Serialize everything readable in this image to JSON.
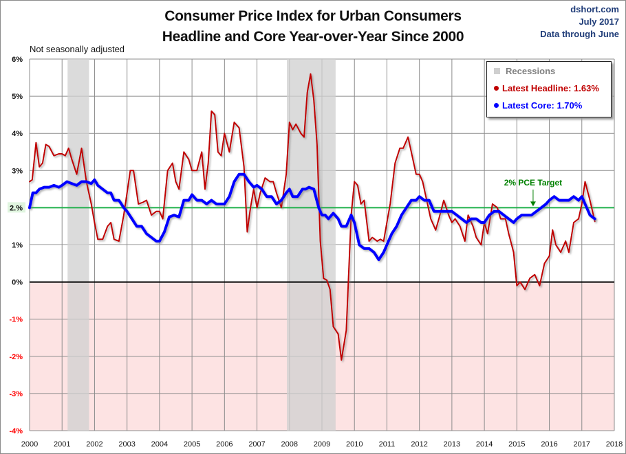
{
  "header": {
    "title_line1": "Consumer Price Index for Urban Consumers",
    "title_line2": "Headline and Core Year-over-Year Since 2000",
    "source": "dshort.com",
    "date": "July 2017",
    "data_through": "Data through June",
    "note": "Not seasonally adjusted"
  },
  "legend": {
    "recessions": "Recessions",
    "headline": "Latest Headline:  1.63%",
    "core": "Latest Core:  1.70%"
  },
  "colors": {
    "headline": "#c00000",
    "core": "#0000ff",
    "target": "#22b14c",
    "target_label": "#008000",
    "recession": "#d0d0d0",
    "negative_zone": "#fde3e3",
    "negative_tick": "#ff0000"
  },
  "chart_data": {
    "type": "line",
    "title": "Consumer Price Index for Urban Consumers — Headline and Core Year-over-Year Since 2000",
    "xlabel": "",
    "ylabel": "",
    "xlim": [
      2000,
      2018
    ],
    "ylim": [
      -4,
      6
    ],
    "grid": true,
    "legend_position": "top-right",
    "x_ticks": [
      "2000",
      "2001",
      "2002",
      "2003",
      "2004",
      "2005",
      "2006",
      "2007",
      "2008",
      "2009",
      "2010",
      "2011",
      "2012",
      "2013",
      "2014",
      "2015",
      "2016",
      "2017",
      "2018"
    ],
    "y_ticks": [
      {
        "value": 6,
        "label": "6%"
      },
      {
        "value": 5,
        "label": "5%"
      },
      {
        "value": 4,
        "label": "4%"
      },
      {
        "value": 3,
        "label": "3%"
      },
      {
        "value": 2,
        "label": "2.%"
      },
      {
        "value": 1,
        "label": "1%"
      },
      {
        "value": 0,
        "label": "0%"
      },
      {
        "value": -1,
        "label": "-1%"
      },
      {
        "value": -2,
        "label": "-2%"
      },
      {
        "value": -3,
        "label": "-3%"
      },
      {
        "value": -4,
        "label": "-4%"
      }
    ],
    "recessions": [
      [
        2001.17,
        2001.83
      ],
      [
        2007.92,
        2009.42
      ]
    ],
    "target": {
      "value": 2.0,
      "label": "2% PCE Target",
      "label_x": 2015.5
    },
    "series": [
      {
        "name": "Headline",
        "x": [
          2000.0,
          2000.08,
          2000.2,
          2000.3,
          2000.4,
          2000.5,
          2000.6,
          2000.75,
          2000.9,
          2001.0,
          2001.1,
          2001.2,
          2001.3,
          2001.45,
          2001.6,
          2001.75,
          2001.9,
          2002.0,
          2002.1,
          2002.25,
          2002.4,
          2002.5,
          2002.6,
          2002.75,
          2002.9,
          2003.0,
          2003.1,
          2003.2,
          2003.35,
          2003.5,
          2003.6,
          2003.75,
          2003.9,
          2004.0,
          2004.1,
          2004.25,
          2004.4,
          2004.5,
          2004.6,
          2004.75,
          2004.9,
          2005.0,
          2005.15,
          2005.3,
          2005.4,
          2005.5,
          2005.6,
          2005.7,
          2005.8,
          2005.9,
          2006.0,
          2006.15,
          2006.3,
          2006.45,
          2006.6,
          2006.7,
          2006.8,
          2006.9,
          2007.0,
          2007.1,
          2007.25,
          2007.4,
          2007.5,
          2007.6,
          2007.75,
          2007.9,
          2008.0,
          2008.1,
          2008.2,
          2008.35,
          2008.45,
          2008.55,
          2008.65,
          2008.75,
          2008.85,
          2008.95,
          2009.05,
          2009.15,
          2009.25,
          2009.35,
          2009.5,
          2009.6,
          2009.75,
          2009.9,
          2010.0,
          2010.1,
          2010.2,
          2010.3,
          2010.45,
          2010.55,
          2010.7,
          2010.8,
          2010.9,
          2011.0,
          2011.1,
          2011.25,
          2011.4,
          2011.5,
          2011.65,
          2011.75,
          2011.9,
          2012.0,
          2012.1,
          2012.2,
          2012.35,
          2012.5,
          2012.6,
          2012.75,
          2012.9,
          2013.0,
          2013.1,
          2013.25,
          2013.4,
          2013.5,
          2013.65,
          2013.75,
          2013.9,
          2014.0,
          2014.1,
          2014.25,
          2014.4,
          2014.5,
          2014.65,
          2014.75,
          2014.9,
          2015.0,
          2015.1,
          2015.25,
          2015.4,
          2015.55,
          2015.7,
          2015.85,
          2016.0,
          2016.1,
          2016.2,
          2016.35,
          2016.5,
          2016.6,
          2016.75,
          2016.9,
          2017.0,
          2017.1,
          2017.25,
          2017.4
        ],
        "values": [
          2.7,
          2.75,
          3.75,
          3.1,
          3.2,
          3.7,
          3.65,
          3.4,
          3.45,
          3.45,
          3.4,
          3.6,
          3.3,
          2.9,
          3.6,
          2.7,
          2.1,
          1.6,
          1.15,
          1.15,
          1.5,
          1.6,
          1.15,
          1.1,
          1.8,
          2.4,
          3.0,
          3.0,
          2.1,
          2.15,
          2.2,
          1.8,
          1.9,
          1.9,
          1.7,
          3.0,
          3.2,
          2.7,
          2.5,
          3.5,
          3.3,
          3.0,
          3.0,
          3.5,
          2.5,
          3.2,
          4.6,
          4.5,
          3.5,
          3.4,
          4.0,
          3.5,
          4.3,
          4.15,
          3.1,
          1.35,
          2.0,
          2.5,
          2.0,
          2.4,
          2.8,
          2.7,
          2.7,
          2.4,
          2.0,
          2.9,
          4.3,
          4.1,
          4.25,
          4.0,
          3.9,
          5.1,
          5.6,
          4.9,
          3.7,
          1.1,
          0.1,
          0.05,
          -0.2,
          -1.2,
          -1.4,
          -2.1,
          -1.3,
          1.8,
          2.7,
          2.6,
          2.1,
          2.2,
          1.1,
          1.2,
          1.1,
          1.15,
          1.1,
          1.6,
          2.1,
          3.2,
          3.6,
          3.6,
          3.9,
          3.5,
          2.9,
          2.9,
          2.7,
          2.3,
          1.7,
          1.4,
          1.7,
          2.2,
          1.8,
          1.6,
          1.7,
          1.5,
          1.1,
          1.8,
          1.5,
          1.2,
          1.0,
          1.6,
          1.3,
          2.1,
          2.0,
          1.7,
          1.7,
          1.3,
          0.8,
          -0.1,
          0.0,
          -0.2,
          0.1,
          0.2,
          -0.1,
          0.5,
          0.7,
          1.4,
          1.0,
          0.8,
          1.1,
          0.8,
          1.6,
          1.7,
          2.1,
          2.7,
          2.2,
          1.63
        ]
      },
      {
        "name": "Core",
        "x": [
          2000.0,
          2000.1,
          2000.2,
          2000.3,
          2000.45,
          2000.6,
          2000.75,
          2000.9,
          2001.0,
          2001.15,
          2001.3,
          2001.45,
          2001.6,
          2001.75,
          2001.9,
          2002.0,
          2002.1,
          2002.25,
          2002.4,
          2002.5,
          2002.6,
          2002.75,
          2002.9,
          2003.0,
          2003.15,
          2003.3,
          2003.45,
          2003.6,
          2003.75,
          2003.9,
          2004.0,
          2004.15,
          2004.3,
          2004.45,
          2004.6,
          2004.75,
          2004.9,
          2005.0,
          2005.15,
          2005.3,
          2005.45,
          2005.6,
          2005.75,
          2005.9,
          2006.0,
          2006.15,
          2006.3,
          2006.45,
          2006.6,
          2006.75,
          2006.9,
          2007.0,
          2007.15,
          2007.3,
          2007.45,
          2007.6,
          2007.75,
          2007.9,
          2008.0,
          2008.1,
          2008.25,
          2008.4,
          2008.5,
          2008.6,
          2008.75,
          2008.9,
          2009.0,
          2009.1,
          2009.2,
          2009.35,
          2009.5,
          2009.6,
          2009.75,
          2009.9,
          2010.0,
          2010.15,
          2010.3,
          2010.45,
          2010.6,
          2010.75,
          2010.9,
          2011.0,
          2011.15,
          2011.3,
          2011.45,
          2011.6,
          2011.75,
          2011.9,
          2012.0,
          2012.15,
          2012.3,
          2012.45,
          2012.6,
          2012.75,
          2012.9,
          2013.0,
          2013.15,
          2013.3,
          2013.45,
          2013.6,
          2013.75,
          2013.9,
          2014.0,
          2014.15,
          2014.3,
          2014.45,
          2014.6,
          2014.75,
          2014.9,
          2015.0,
          2015.15,
          2015.3,
          2015.45,
          2015.6,
          2015.75,
          2015.9,
          2016.0,
          2016.15,
          2016.3,
          2016.45,
          2016.6,
          2016.75,
          2016.9,
          2017.0,
          2017.1,
          2017.25,
          2017.4
        ],
        "values": [
          2.0,
          2.4,
          2.4,
          2.5,
          2.55,
          2.55,
          2.6,
          2.55,
          2.6,
          2.7,
          2.65,
          2.6,
          2.7,
          2.7,
          2.65,
          2.75,
          2.6,
          2.5,
          2.4,
          2.4,
          2.2,
          2.2,
          2.0,
          1.9,
          1.7,
          1.5,
          1.5,
          1.3,
          1.2,
          1.1,
          1.1,
          1.35,
          1.75,
          1.8,
          1.75,
          2.2,
          2.2,
          2.35,
          2.2,
          2.2,
          2.1,
          2.2,
          2.1,
          2.1,
          2.1,
          2.3,
          2.7,
          2.9,
          2.9,
          2.7,
          2.55,
          2.6,
          2.5,
          2.3,
          2.3,
          2.1,
          2.2,
          2.4,
          2.5,
          2.3,
          2.3,
          2.5,
          2.5,
          2.55,
          2.5,
          2.0,
          1.8,
          1.8,
          1.7,
          1.85,
          1.7,
          1.5,
          1.5,
          1.8,
          1.6,
          1.0,
          0.9,
          0.9,
          0.8,
          0.6,
          0.8,
          1.0,
          1.3,
          1.5,
          1.8,
          2.0,
          2.2,
          2.2,
          2.3,
          2.2,
          2.2,
          1.9,
          1.9,
          1.9,
          1.9,
          1.9,
          1.8,
          1.7,
          1.6,
          1.7,
          1.7,
          1.6,
          1.6,
          1.8,
          1.9,
          1.9,
          1.8,
          1.7,
          1.6,
          1.7,
          1.8,
          1.8,
          1.8,
          1.9,
          2.0,
          2.1,
          2.2,
          2.3,
          2.2,
          2.2,
          2.2,
          2.3,
          2.2,
          2.3,
          2.1,
          1.8,
          1.7
        ]
      }
    ]
  }
}
